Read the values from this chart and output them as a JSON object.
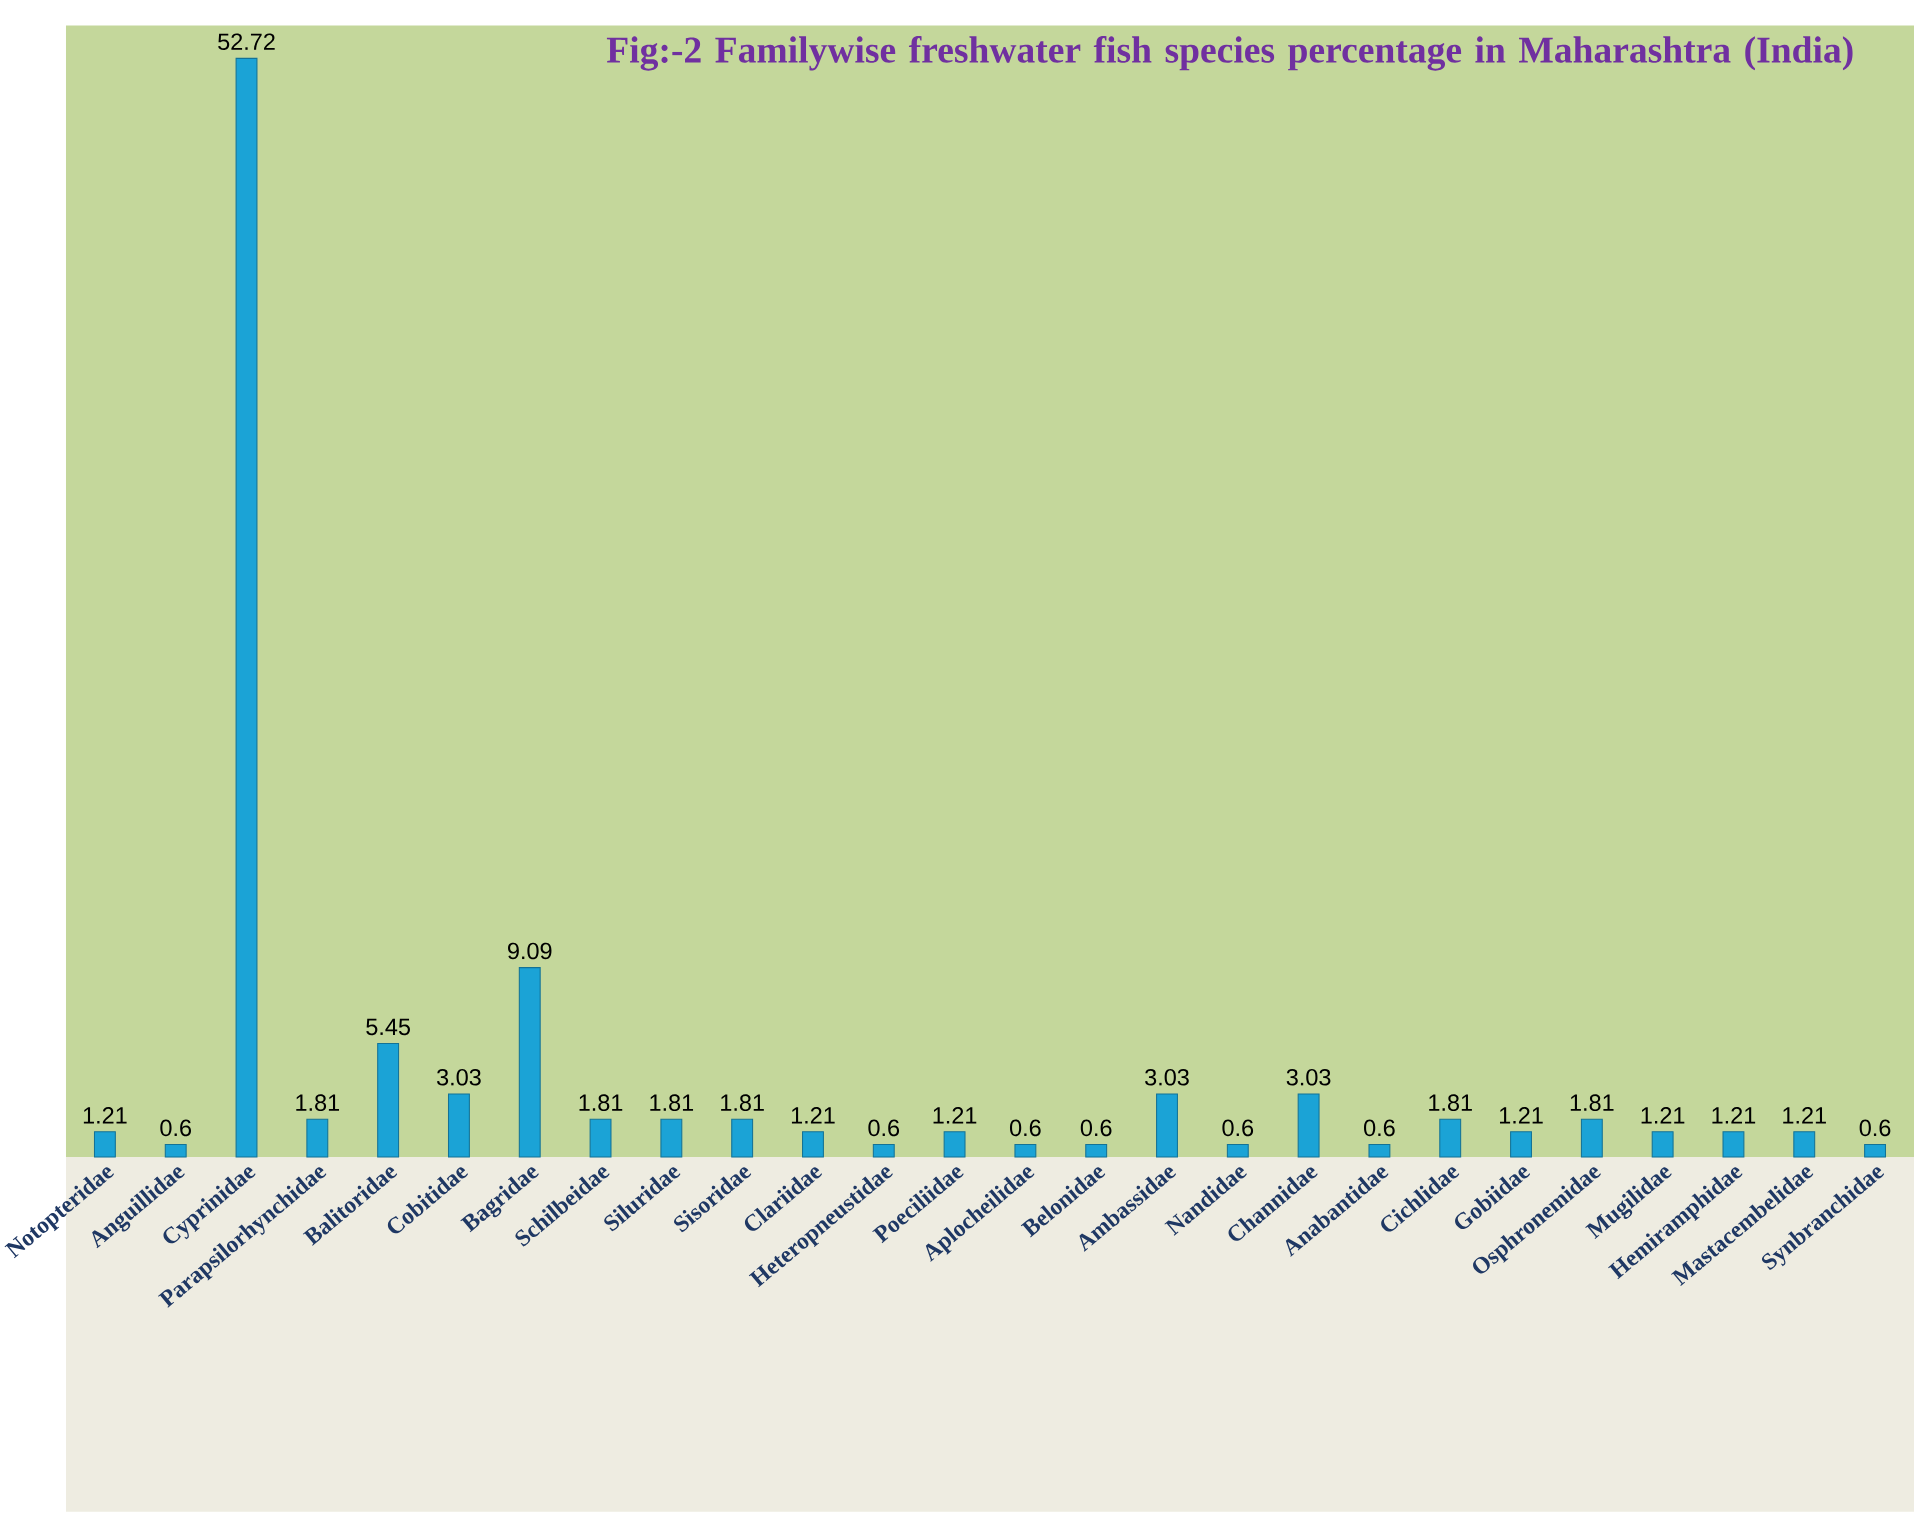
{
  "chart_data": {
    "type": "bar",
    "title": "Fig:-2  Familywise freshwater fish species  percentage in Maharashtra (India)",
    "categories": [
      "Notopteridae",
      "Anguillidae",
      "Cyprinidae",
      "Parapsilorhynchidae",
      "Balitoridae",
      "Cobitidae",
      "Bagridae",
      "Schilbeidae",
      "Siluridae",
      "Sisoridae",
      "Clariidae",
      "Heteropneustidae",
      "Poeciliidae",
      "Aplocheilidae",
      "Belonidae",
      "Ambassidae",
      "Nandidae",
      "Channidae",
      "Anabantidae",
      "Cichlidae",
      "Gobiidae",
      "Osphronemidae",
      "Mugilidae",
      "Hemiramphidae",
      "Mastacembelidae",
      "Synbranchidae"
    ],
    "values": [
      1.21,
      0.6,
      52.72,
      1.81,
      5.45,
      3.03,
      9.09,
      1.81,
      1.81,
      1.81,
      1.21,
      0.6,
      1.21,
      0.6,
      0.6,
      3.03,
      0.6,
      3.03,
      0.6,
      1.81,
      1.21,
      1.81,
      1.21,
      1.21,
      1.21,
      0.6
    ],
    "color": "#1ba3d6",
    "data_labels": true
  }
}
